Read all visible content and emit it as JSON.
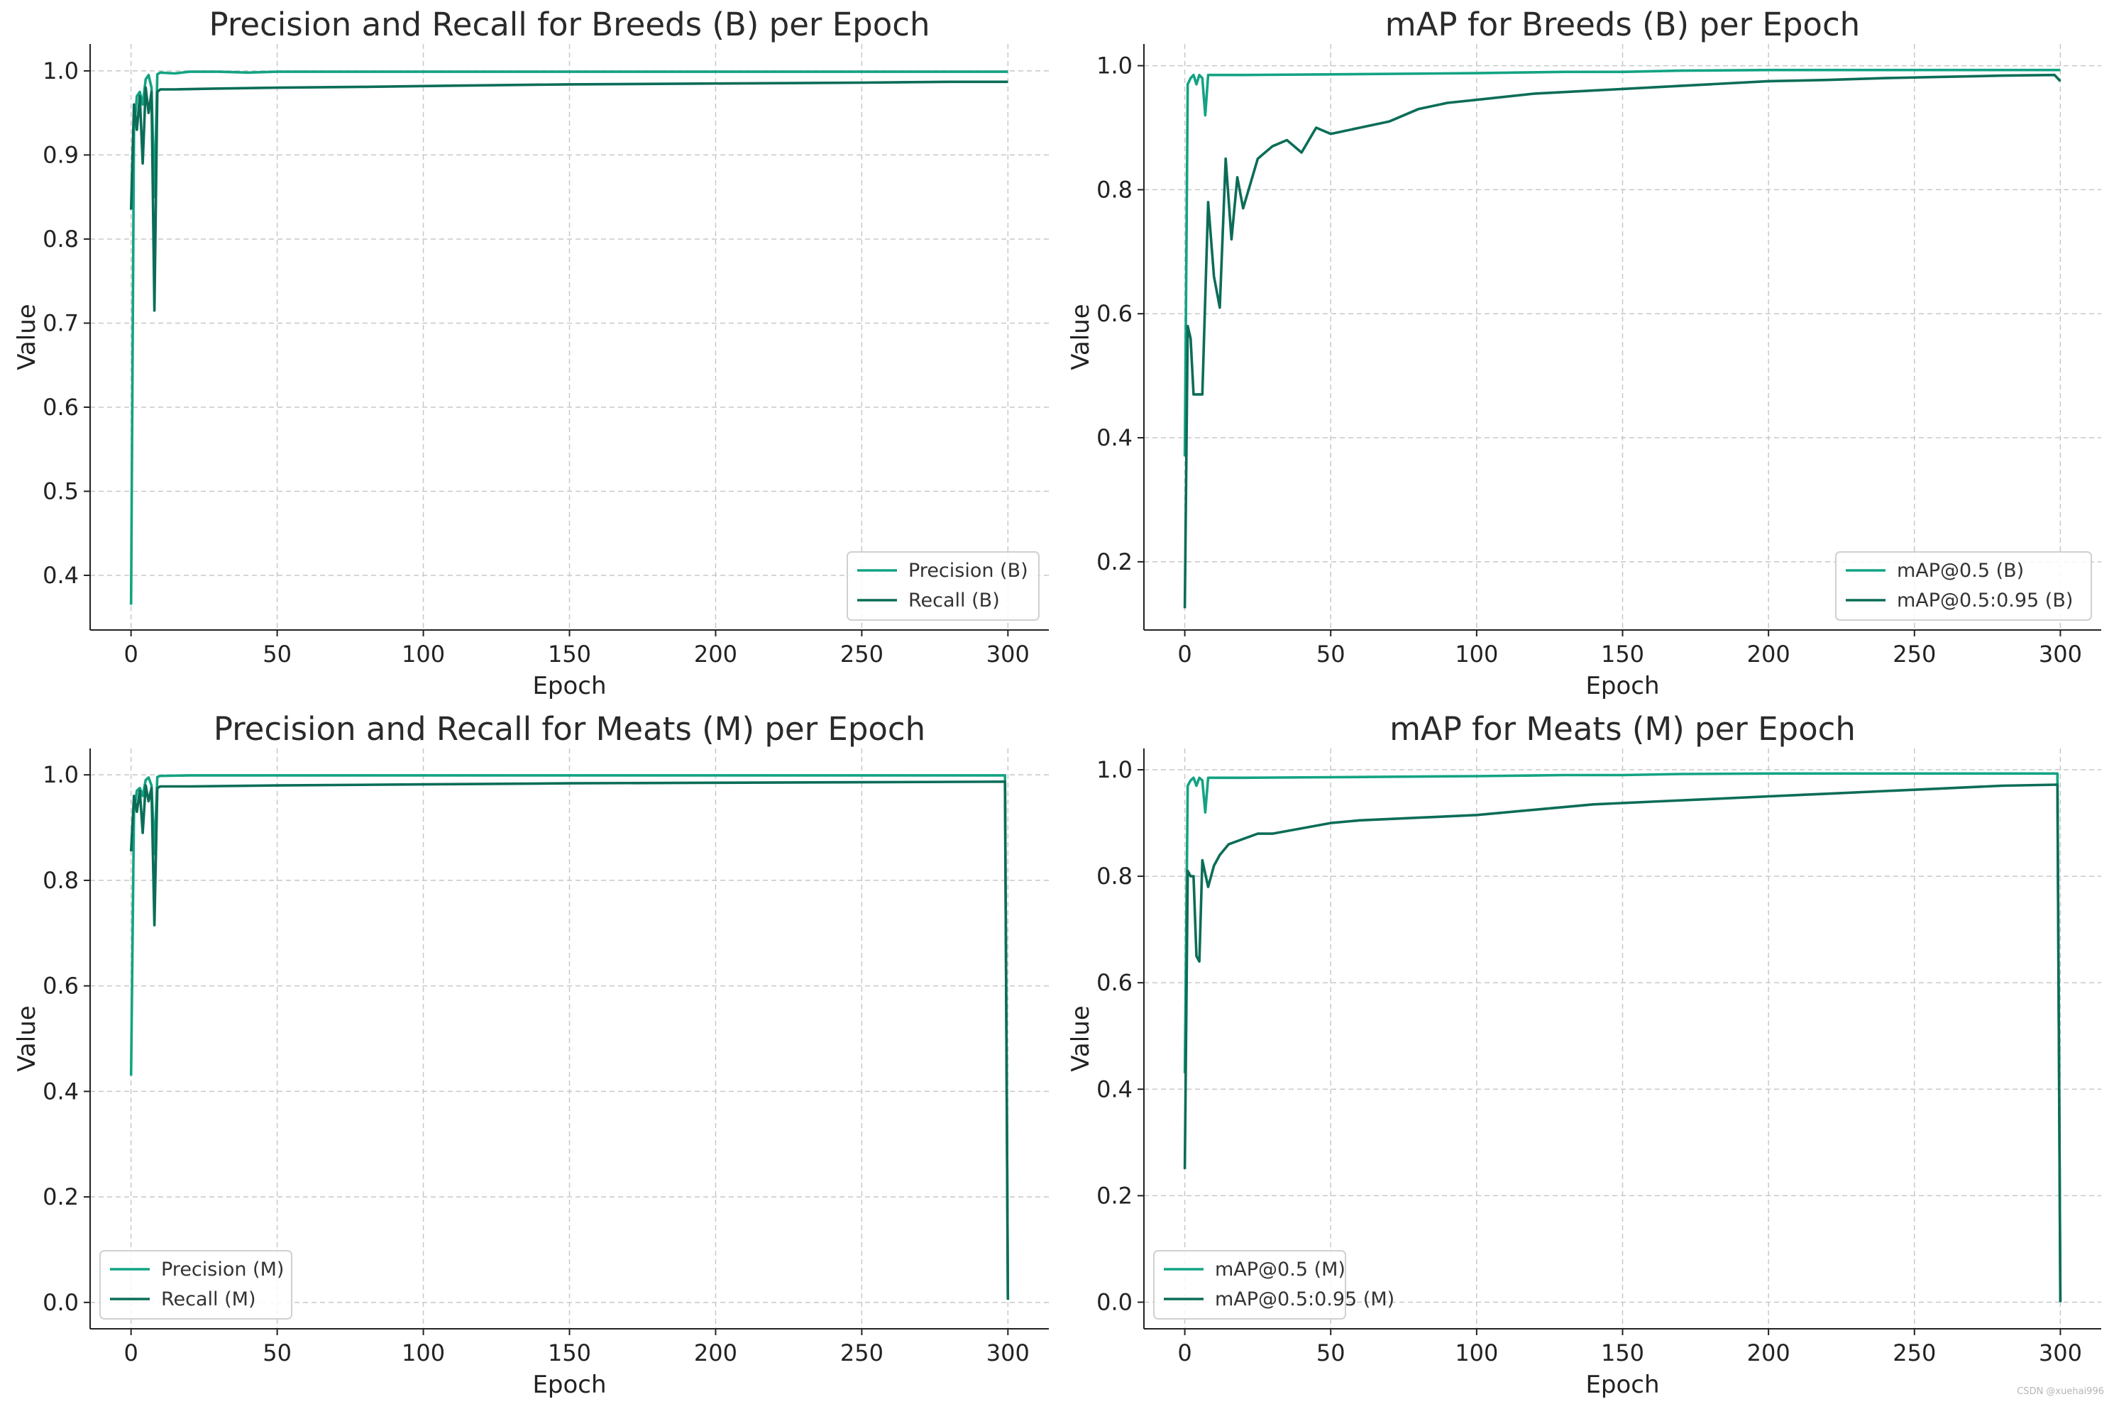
{
  "watermark": "CSDN @xuehai996",
  "chart_data": [
    {
      "type": "line",
      "title": "Precision and Recall for Breeds (B) per Epoch",
      "xlabel": "Epoch",
      "ylabel": "Value",
      "xlim": [
        -14,
        314
      ],
      "ylim": [
        0.335,
        1.032
      ],
      "xticks": [
        0,
        50,
        100,
        150,
        200,
        250,
        300
      ],
      "yticks": [
        0.4,
        0.5,
        0.6,
        0.7,
        0.8,
        0.9,
        1.0
      ],
      "ytick_decimals": 1,
      "grid": true,
      "legend_position": "bottom-right",
      "series": [
        {
          "name": "Precision (B)",
          "color": "#13a383",
          "x": [
            0,
            1,
            2,
            3,
            4,
            5,
            6,
            7,
            8,
            9,
            10,
            15,
            20,
            30,
            40,
            50,
            80,
            100,
            150,
            200,
            250,
            280,
            300
          ],
          "y": [
            0.365,
            0.93,
            0.97,
            0.975,
            0.96,
            0.99,
            0.995,
            0.98,
            0.85,
            0.996,
            0.998,
            0.997,
            0.999,
            0.999,
            0.998,
            0.999,
            0.999,
            0.999,
            0.999,
            0.999,
            0.999,
            0.999,
            0.999
          ]
        },
        {
          "name": "Recall (B)",
          "color": "#0b6d57",
          "x": [
            0,
            1,
            2,
            3,
            4,
            5,
            6,
            7,
            8,
            9,
            10,
            15,
            30,
            50,
            80,
            100,
            150,
            200,
            250,
            280,
            300
          ],
          "y": [
            0.835,
            0.96,
            0.93,
            0.97,
            0.89,
            0.98,
            0.95,
            0.975,
            0.715,
            0.975,
            0.978,
            0.978,
            0.979,
            0.98,
            0.981,
            0.982,
            0.984,
            0.985,
            0.986,
            0.987,
            0.987
          ]
        }
      ]
    },
    {
      "type": "line",
      "title": "mAP for Breeds (B) per Epoch",
      "xlabel": "Epoch",
      "ylabel": "Value",
      "xlim": [
        -14,
        314
      ],
      "ylim": [
        0.09,
        1.035
      ],
      "xticks": [
        0,
        50,
        100,
        150,
        200,
        250,
        300
      ],
      "yticks": [
        0.2,
        0.4,
        0.6,
        0.8,
        1.0
      ],
      "ytick_decimals": 1,
      "grid": true,
      "legend_position": "bottom-right",
      "series": [
        {
          "name": "mAP@0.5 (B)",
          "color": "#13a383",
          "x": [
            0,
            1,
            2,
            3,
            4,
            5,
            6,
            7,
            8,
            9,
            10,
            20,
            50,
            100,
            130,
            150,
            170,
            200,
            250,
            300
          ],
          "y": [
            0.37,
            0.97,
            0.98,
            0.985,
            0.97,
            0.985,
            0.98,
            0.92,
            0.985,
            0.985,
            0.985,
            0.985,
            0.986,
            0.988,
            0.99,
            0.99,
            0.992,
            0.993,
            0.993,
            0.993
          ]
        },
        {
          "name": "mAP@0.5:0.95 (B)",
          "color": "#0b6d57",
          "x": [
            0,
            1,
            2,
            3,
            4,
            6,
            8,
            10,
            12,
            14,
            16,
            18,
            20,
            25,
            30,
            35,
            40,
            45,
            50,
            60,
            70,
            80,
            90,
            100,
            120,
            140,
            160,
            180,
            200,
            220,
            240,
            260,
            280,
            298,
            300
          ],
          "y": [
            0.125,
            0.58,
            0.56,
            0.47,
            0.47,
            0.47,
            0.78,
            0.66,
            0.61,
            0.85,
            0.72,
            0.82,
            0.77,
            0.85,
            0.87,
            0.88,
            0.86,
            0.9,
            0.89,
            0.9,
            0.91,
            0.93,
            0.94,
            0.945,
            0.955,
            0.96,
            0.965,
            0.97,
            0.975,
            0.977,
            0.98,
            0.982,
            0.984,
            0.985,
            0.975
          ]
        }
      ]
    },
    {
      "type": "line",
      "title": "Precision and Recall for Meats (M) per Epoch",
      "xlabel": "Epoch",
      "ylabel": "Value",
      "xlim": [
        -14,
        314
      ],
      "ylim": [
        -0.05,
        1.05
      ],
      "xticks": [
        0,
        50,
        100,
        150,
        200,
        250,
        300
      ],
      "yticks": [
        0.0,
        0.2,
        0.4,
        0.6,
        0.8,
        1.0
      ],
      "ytick_decimals": 1,
      "grid": true,
      "legend_position": "bottom-left",
      "series": [
        {
          "name": "Precision (M)",
          "color": "#13a383",
          "x": [
            0,
            1,
            2,
            3,
            4,
            5,
            6,
            7,
            8,
            9,
            10,
            20,
            50,
            100,
            150,
            200,
            250,
            299,
            300
          ],
          "y": [
            0.43,
            0.93,
            0.97,
            0.975,
            0.96,
            0.99,
            0.995,
            0.98,
            0.85,
            0.996,
            0.998,
            0.999,
            0.999,
            0.999,
            0.999,
            0.999,
            0.999,
            0.999,
            0.005
          ]
        },
        {
          "name": "Recall (M)",
          "color": "#0b6d57",
          "x": [
            0,
            1,
            2,
            3,
            4,
            5,
            6,
            7,
            8,
            9,
            10,
            20,
            50,
            100,
            150,
            200,
            250,
            299,
            300
          ],
          "y": [
            0.855,
            0.96,
            0.93,
            0.97,
            0.89,
            0.98,
            0.95,
            0.975,
            0.715,
            0.975,
            0.978,
            0.978,
            0.98,
            0.982,
            0.984,
            0.985,
            0.986,
            0.987,
            0.005
          ]
        }
      ]
    },
    {
      "type": "line",
      "title": "mAP for Meats (M) per Epoch",
      "xlabel": "Epoch",
      "ylabel": "Value",
      "xlim": [
        -14,
        314
      ],
      "ylim": [
        -0.05,
        1.04
      ],
      "xticks": [
        0,
        50,
        100,
        150,
        200,
        250,
        300
      ],
      "yticks": [
        0.0,
        0.2,
        0.4,
        0.6,
        0.8,
        1.0
      ],
      "ytick_decimals": 1,
      "grid": true,
      "legend_position": "bottom-left",
      "series": [
        {
          "name": "mAP@0.5 (M)",
          "color": "#13a383",
          "x": [
            0,
            1,
            2,
            3,
            4,
            5,
            6,
            7,
            8,
            9,
            10,
            20,
            50,
            100,
            130,
            150,
            170,
            200,
            250,
            299,
            300
          ],
          "y": [
            0.43,
            0.97,
            0.98,
            0.985,
            0.97,
            0.985,
            0.98,
            0.92,
            0.985,
            0.985,
            0.985,
            0.985,
            0.986,
            0.988,
            0.99,
            0.99,
            0.992,
            0.993,
            0.993,
            0.993,
            0.0
          ]
        },
        {
          "name": "mAP@0.5:0.95 (M)",
          "color": "#0b6d57",
          "x": [
            0,
            1,
            2,
            3,
            4,
            5,
            6,
            8,
            10,
            12,
            15,
            20,
            25,
            30,
            40,
            50,
            60,
            80,
            100,
            120,
            140,
            160,
            180,
            200,
            220,
            240,
            260,
            280,
            299,
            300
          ],
          "y": [
            0.25,
            0.81,
            0.8,
            0.8,
            0.65,
            0.64,
            0.83,
            0.78,
            0.82,
            0.84,
            0.86,
            0.87,
            0.88,
            0.88,
            0.89,
            0.9,
            0.905,
            0.91,
            0.915,
            0.925,
            0.935,
            0.94,
            0.945,
            0.95,
            0.955,
            0.96,
            0.965,
            0.97,
            0.972,
            0.0
          ]
        }
      ]
    }
  ]
}
